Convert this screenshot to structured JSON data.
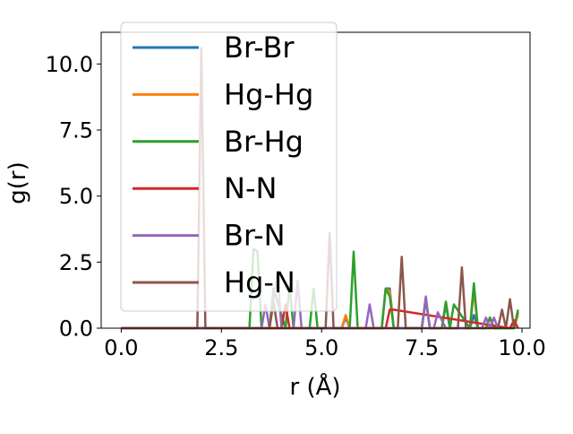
{
  "chart_data": {
    "type": "line",
    "title": "",
    "xlabel": "r (Å)",
    "ylabel": "g(r)",
    "xlim": [
      -0.5,
      10.2
    ],
    "ylim": [
      0,
      11.2
    ],
    "x_ticks": [
      0.0,
      2.5,
      5.0,
      7.5,
      10.0
    ],
    "x_tick_labels": [
      "0.0",
      "2.5",
      "5.0",
      "7.5",
      "10.0"
    ],
    "y_ticks": [
      0.0,
      2.5,
      5.0,
      7.5,
      10.0
    ],
    "y_tick_labels": [
      "0.0",
      "2.5",
      "5.0",
      "7.5",
      "10.0"
    ],
    "grid": false,
    "legend_position": "upper-left",
    "series": [
      {
        "name": "Br-Br",
        "color": "#1f77b4",
        "x": [
          0,
          5.5,
          5.6,
          5.7,
          6.5,
          6.6,
          6.7,
          6.8,
          7.5,
          7.6,
          7.7,
          8.0,
          8.1,
          8.2,
          8.7,
          8.8,
          8.9,
          9.1,
          9.2,
          9.3,
          9.8,
          9.9
        ],
        "y": [
          0,
          0,
          0.4,
          0,
          0,
          1.5,
          1.5,
          0,
          0,
          1.1,
          0,
          0,
          0.9,
          0,
          0,
          0.5,
          0,
          0,
          0.4,
          0,
          0,
          0.6
        ]
      },
      {
        "name": "Hg-Hg",
        "color": "#ff7f0e",
        "x": [
          0,
          5.5,
          5.6,
          5.7,
          6.5,
          6.6,
          6.7,
          6.8,
          7.5,
          7.6,
          7.7,
          8.0,
          8.1,
          8.2,
          8.7,
          8.8,
          8.9,
          9.1,
          9.2,
          9.3,
          9.8,
          9.9
        ],
        "y": [
          0,
          0,
          0.5,
          0,
          0,
          1.5,
          1.4,
          0,
          0,
          1.1,
          0,
          0,
          1.0,
          0,
          0,
          1.4,
          0,
          0,
          0.4,
          0,
          0,
          0.5
        ]
      },
      {
        "name": "Br-Hg",
        "color": "#2ca02c",
        "x": [
          0,
          3.2,
          3.3,
          3.4,
          3.5,
          3.7,
          3.8,
          4.1,
          4.2,
          4.3,
          4.7,
          4.8,
          4.9,
          5.7,
          5.8,
          5.9,
          6.5,
          6.6,
          6.7,
          6.8,
          7.5,
          7.6,
          7.7,
          8.0,
          8.1,
          8.2,
          8.3,
          8.7,
          8.8,
          8.9,
          9.1,
          9.2,
          9.3,
          9.8,
          9.9
        ],
        "y": [
          0,
          0,
          3.0,
          2.9,
          0,
          0,
          1.5,
          0,
          1.6,
          0,
          0,
          1.5,
          0,
          0,
          2.9,
          0,
          0,
          1.5,
          1.2,
          0,
          0,
          1.1,
          0,
          0,
          1.0,
          0,
          0.9,
          0,
          1.7,
          0,
          0,
          0.4,
          0,
          0,
          0.7
        ]
      },
      {
        "name": "N-N",
        "color": "#d62728",
        "x": [
          0,
          4.0,
          4.1,
          4.2,
          6.6,
          6.7,
          6.8,
          9.7,
          9.8,
          9.9
        ],
        "y": [
          0,
          0,
          0.9,
          0,
          0,
          0.7,
          0.7,
          0,
          0.3,
          0
        ]
      },
      {
        "name": "Br-N",
        "color": "#9467bd",
        "x": [
          0,
          3.5,
          3.6,
          3.7,
          3.8,
          3.9,
          4.0,
          4.3,
          4.4,
          4.5,
          6.1,
          6.2,
          6.3,
          7.5,
          7.6,
          7.7,
          7.8,
          7.9,
          8.0,
          8.1,
          9.0,
          9.1,
          9.2,
          9.3,
          9.4
        ],
        "y": [
          0,
          0,
          0.9,
          0,
          1.1,
          2.1,
          0,
          0,
          1.8,
          0,
          0,
          0.9,
          0,
          0,
          1.2,
          0,
          0,
          0.6,
          0.3,
          0,
          0,
          0.4,
          0,
          0.4,
          0
        ]
      },
      {
        "name": "Hg-N",
        "color": "#8c564b",
        "x": [
          0,
          1.9,
          2.0,
          2.1,
          3.7,
          3.8,
          3.9,
          5.1,
          5.2,
          5.3,
          6.9,
          7.0,
          7.1,
          8.4,
          8.5,
          8.6,
          9.4,
          9.5,
          9.6,
          9.7,
          9.8
        ],
        "y": [
          0,
          0,
          10.6,
          0,
          0,
          1.0,
          0,
          0,
          3.6,
          0,
          0,
          2.7,
          0,
          0,
          2.3,
          0,
          0,
          0.7,
          0,
          1.1,
          0
        ]
      }
    ]
  }
}
